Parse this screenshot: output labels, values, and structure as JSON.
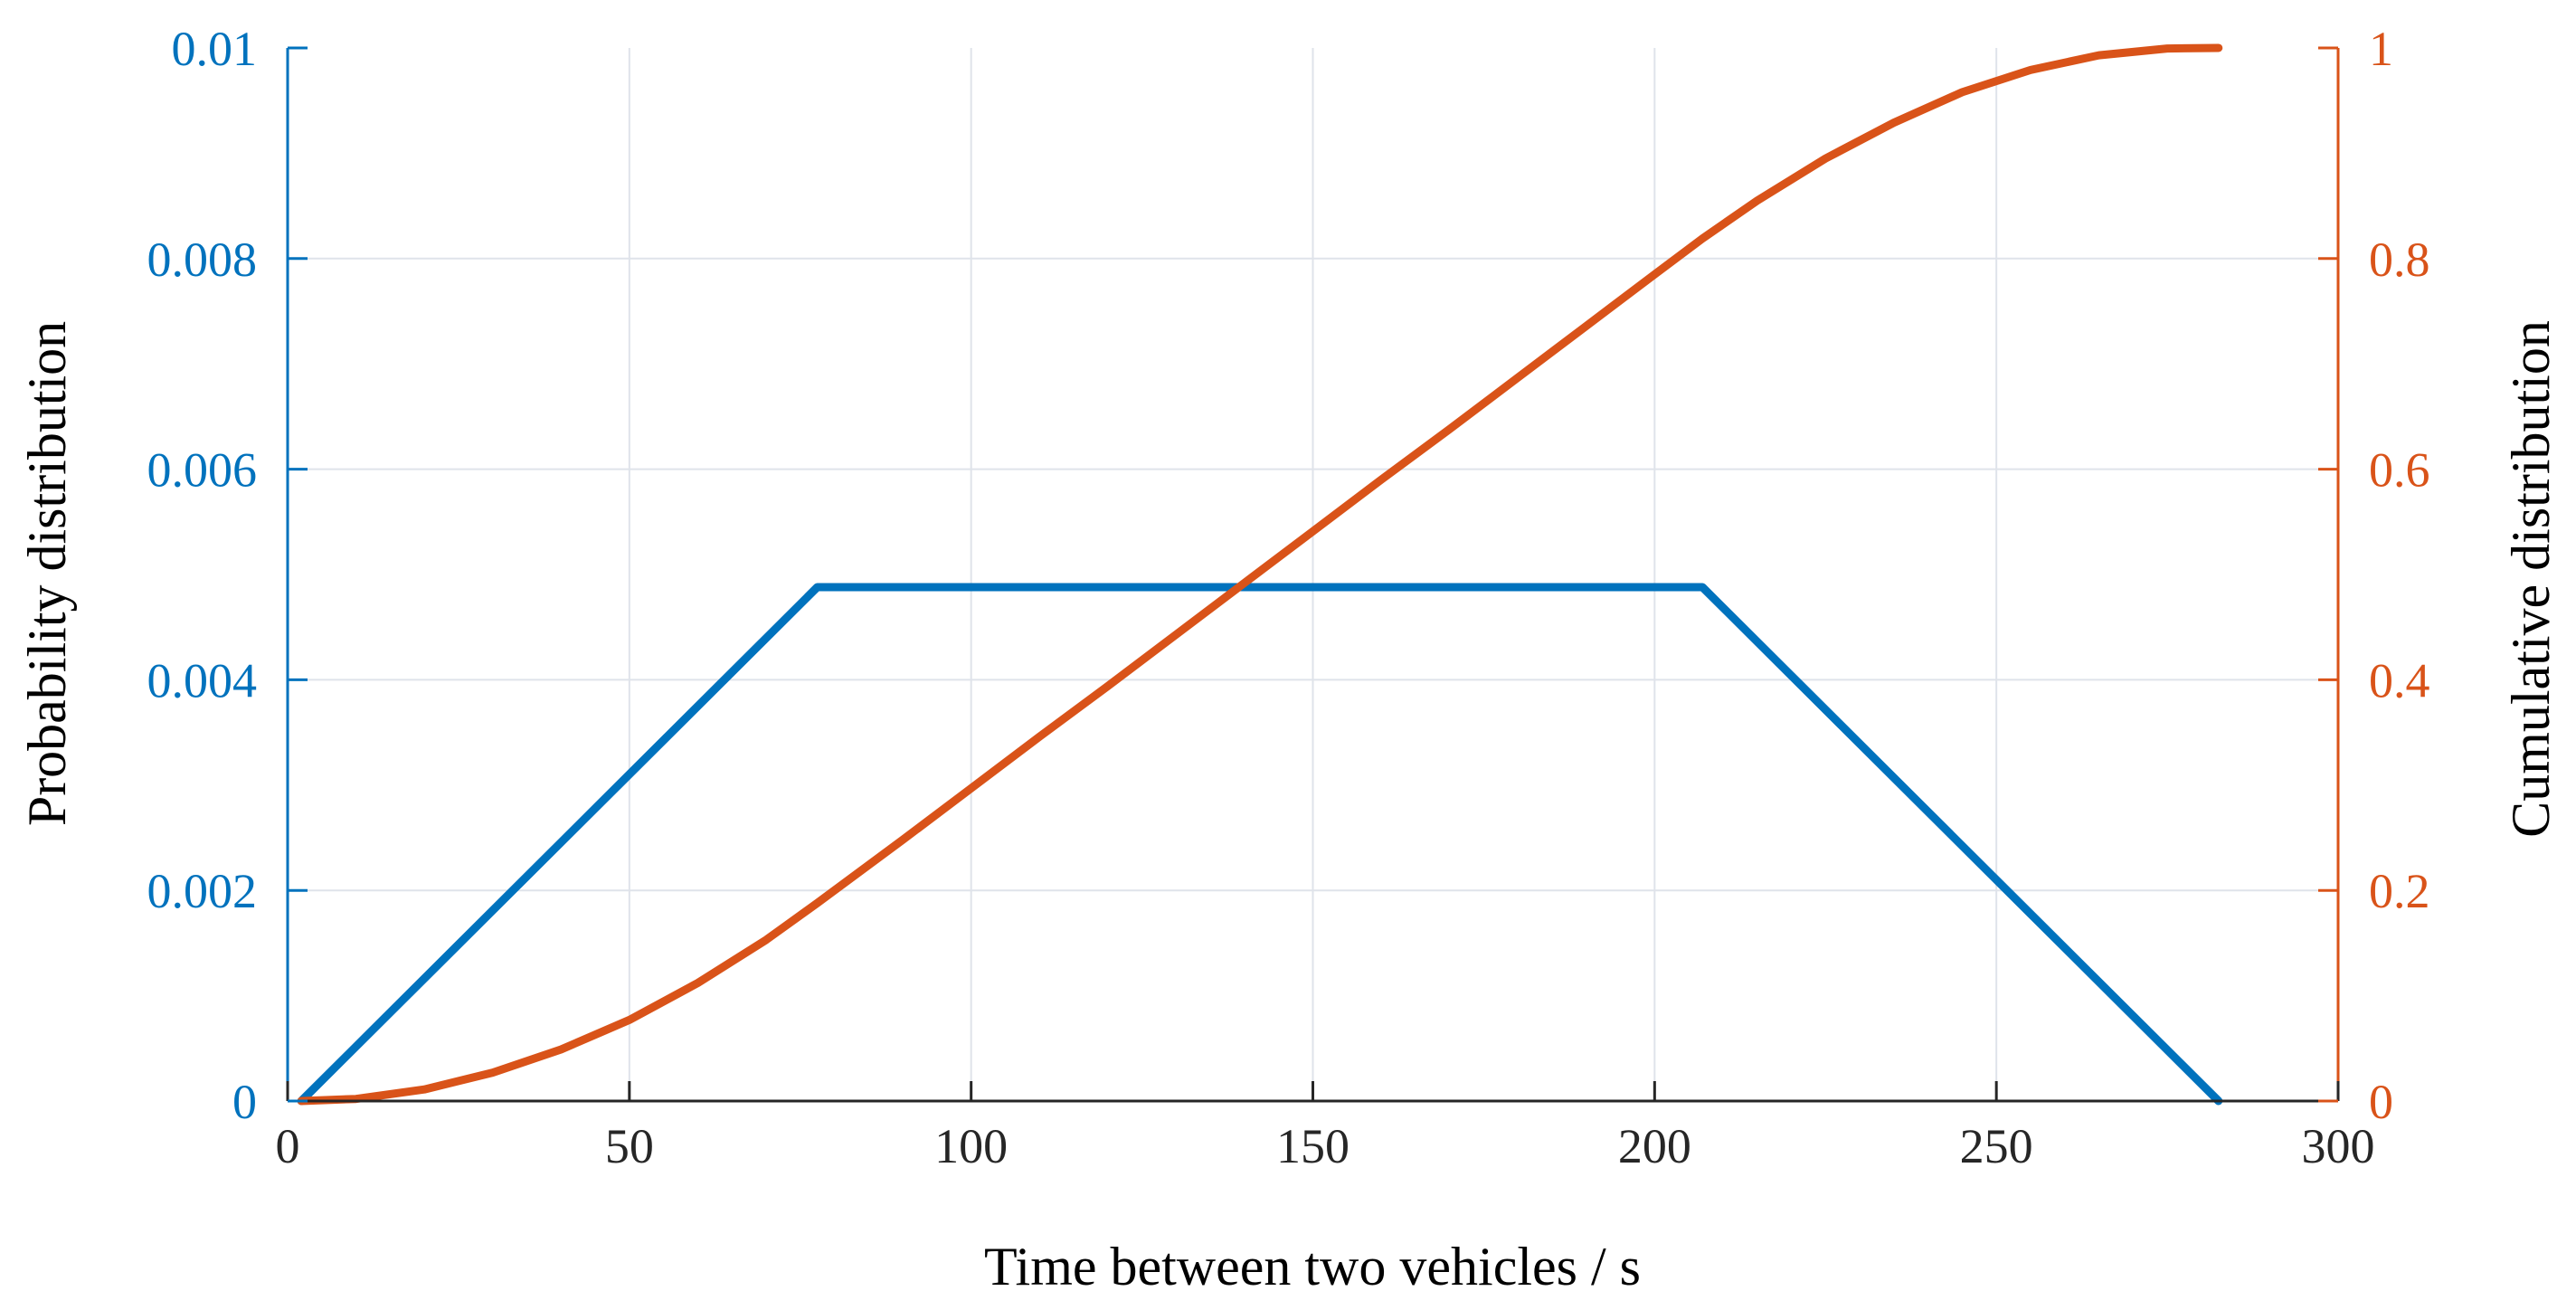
{
  "chart_data": {
    "type": "line",
    "title": "",
    "xlabel": "Time between two vehicles / s",
    "ylabel_left": "Probability distribution",
    "ylabel_right": "Cumulative distribution",
    "xlim": [
      0,
      300
    ],
    "ylim_left": [
      0,
      0.01
    ],
    "ylim_right": [
      0,
      1
    ],
    "x_ticks": [
      "0",
      "50",
      "100",
      "150",
      "200",
      "250",
      "300"
    ],
    "y_left_ticks": [
      "0",
      "0.002",
      "0.004",
      "0.006",
      "0.008",
      "0.01"
    ],
    "y_right_ticks": [
      "0",
      "0.2",
      "0.4",
      "0.6",
      "0.8",
      "1"
    ],
    "grid": true,
    "legend": "none",
    "colors": {
      "left_axis": "#0072BD",
      "right_axis": "#D95319",
      "grid": "#dfe3ea",
      "axis_line": "#262626"
    },
    "series": [
      {
        "axis": "left",
        "color": "#0072BD",
        "x": [
          2,
          77.5,
          207,
          282.5
        ],
        "y": [
          0,
          0.00488,
          0.00488,
          0
        ]
      },
      {
        "axis": "right",
        "color": "#D95319",
        "x": [
          2,
          10,
          20,
          30,
          40,
          50,
          60,
          70,
          77.5,
          90,
          100,
          110,
          120,
          130,
          140,
          150,
          160,
          170,
          180,
          190,
          200,
          207,
          215,
          225,
          235,
          245,
          255,
          265,
          275,
          282.5
        ],
        "y": [
          0,
          0.002,
          0.011,
          0.027,
          0.049,
          0.077,
          0.112,
          0.153,
          0.188,
          0.248,
          0.297,
          0.346,
          0.394,
          0.443,
          0.492,
          0.541,
          0.59,
          0.638,
          0.687,
          0.736,
          0.785,
          0.819,
          0.855,
          0.895,
          0.929,
          0.958,
          0.979,
          0.993,
          0.9995,
          1.0
        ]
      }
    ]
  }
}
